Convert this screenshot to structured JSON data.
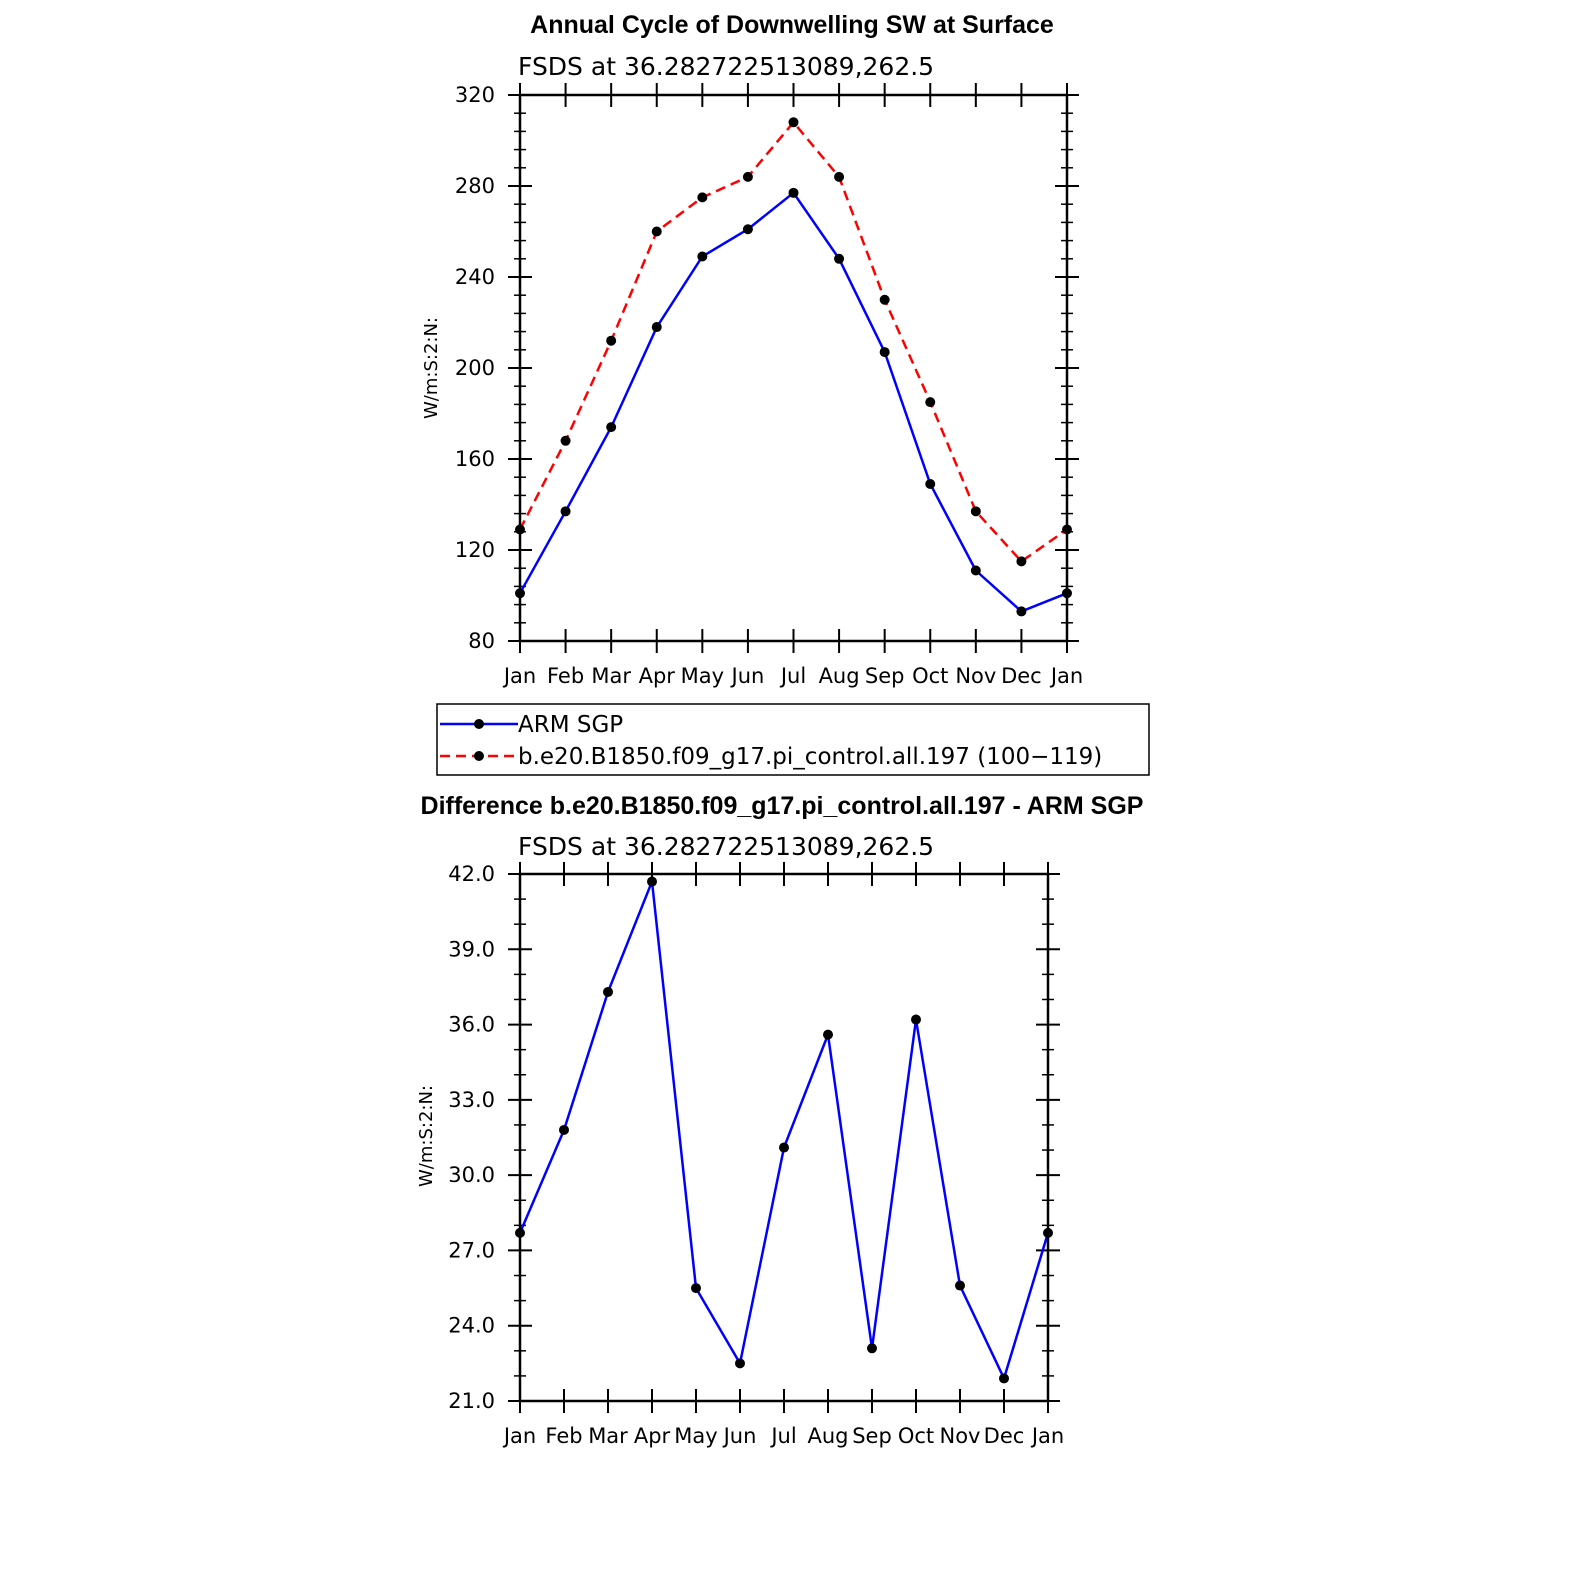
{
  "chart_data": [
    {
      "type": "line",
      "title": "Annual Cycle of Downwelling SW at Surface",
      "subtitle": "FSDS at 36.282722513089,262.5",
      "xlabel": "",
      "ylabel": "W/m:S:2:N:",
      "categories": [
        "Jan",
        "Feb",
        "Mar",
        "Apr",
        "May",
        "Jun",
        "Jul",
        "Aug",
        "Sep",
        "Oct",
        "Nov",
        "Dec",
        "Jan"
      ],
      "ylim": [
        80,
        320
      ],
      "yticks": [
        "80",
        "120",
        "160",
        "200",
        "240",
        "280",
        "320"
      ],
      "series": [
        {
          "name": "ARM SGP",
          "color": "#0000ff",
          "dash": "solid",
          "values": [
            101,
            137,
            174,
            218,
            249,
            261,
            277,
            248,
            207,
            149,
            111,
            93,
            101
          ]
        },
        {
          "name": "b.e20.B1850.f09_g17.pi_control.all.197 (100−119)",
          "color": "#ff0000",
          "dash": "dashed",
          "values": [
            129,
            168,
            212,
            260,
            275,
            284,
            308,
            284,
            230,
            185,
            137,
            115,
            129
          ]
        }
      ],
      "legend": "below"
    },
    {
      "type": "line",
      "title": "Difference b.e20.B1850.f09_g17.pi_control.all.197 - ARM SGP",
      "subtitle": "FSDS at 36.282722513089,262.5",
      "xlabel": "",
      "ylabel": "W/m:S:2:N:",
      "categories": [
        "Jan",
        "Feb",
        "Mar",
        "Apr",
        "May",
        "Jun",
        "Jul",
        "Aug",
        "Sep",
        "Oct",
        "Nov",
        "Dec",
        "Jan"
      ],
      "ylim": [
        21.0,
        42.0
      ],
      "yticks": [
        "21.0",
        "24.0",
        "27.0",
        "30.0",
        "33.0",
        "36.0",
        "39.0",
        "42.0"
      ],
      "series": [
        {
          "color": "#0000ff",
          "dash": "solid",
          "values": [
            27.7,
            31.8,
            37.3,
            41.7,
            25.5,
            22.5,
            31.1,
            35.6,
            23.1,
            36.2,
            25.6,
            21.9,
            27.7
          ]
        }
      ]
    }
  ]
}
